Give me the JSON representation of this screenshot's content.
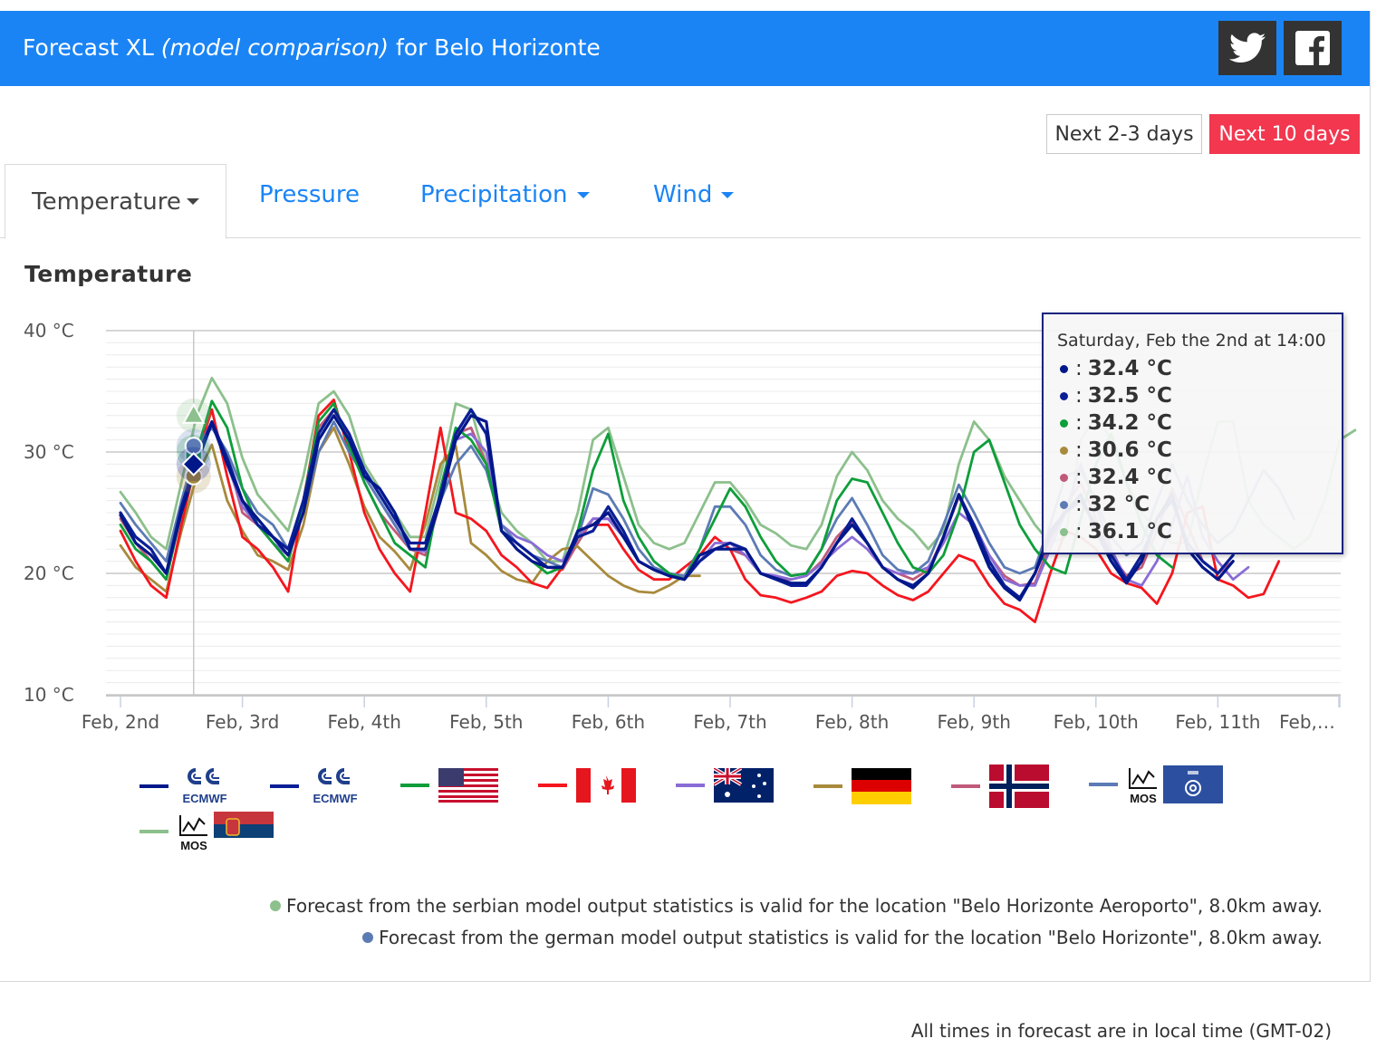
{
  "header": {
    "title_prefix": "Forecast XL",
    "title_italic": "(model comparison)",
    "title_suffix": "for Belo Horizonte",
    "share_twitter_icon": "twitter-icon",
    "share_facebook_icon": "facebook-icon"
  },
  "range_buttons": {
    "short_label": "Next 2-3 days",
    "long_label": "Next 10 days"
  },
  "tabs": [
    {
      "label": "Temperature",
      "active": true,
      "has_dropdown": true
    },
    {
      "label": "Pressure",
      "active": false,
      "has_dropdown": false
    },
    {
      "label": "Precipitation",
      "active": false,
      "has_dropdown": true
    },
    {
      "label": "Wind",
      "active": false,
      "has_dropdown": true
    }
  ],
  "section_title": "Temperature",
  "tooltip": {
    "header": "Saturday, Feb the 2nd at 14:00",
    "rows": [
      {
        "value": "32.4 °C",
        "color": "#00178a"
      },
      {
        "value": "32.5 °C",
        "color": "#0a1e96"
      },
      {
        "value": "34.2 °C",
        "color": "#0e9e3a"
      },
      {
        "value": "30.6 °C",
        "color": "#a88a3c"
      },
      {
        "value": "32.4 °C",
        "color": "#c05a7a"
      },
      {
        "value": "32 °C",
        "color": "#5c7bb5"
      },
      {
        "value": "36.1 °C",
        "color": "#8cc08c"
      }
    ]
  },
  "legend": [
    {
      "color": "#00178a",
      "icon": "ecmwf-logo-icon",
      "text": "ECMWF"
    },
    {
      "color": "#0a1e96",
      "icon": "ecmwf-logo-icon",
      "text": "ECMWF"
    },
    {
      "color": "#0e9e3a",
      "icon": "usa-flag-icon"
    },
    {
      "color": "#f5161e",
      "icon": "canada-flag-icon"
    },
    {
      "color": "#8a6cd6",
      "icon": "australia-flag-icon"
    },
    {
      "color": "#a88a3c",
      "icon": "germany-flag-icon"
    },
    {
      "color": "#c05a7a",
      "icon": "norway-flag-icon"
    },
    {
      "color": "#5c7bb5",
      "icon": "mos-dwd-icon",
      "text": "MOS"
    },
    {
      "color": "#8cc08c",
      "icon": "mos-serbia-flag-icon",
      "text": "MOS"
    }
  ],
  "notes": [
    {
      "text": "Forecast from the serbian model output statistics is valid for the location \"Belo Horizonte Aeroporto\", 8.0km away.",
      "color": "#8cc08c"
    },
    {
      "text": "Forecast from the german model output statistics is valid for the location \"Belo Horizonte\", 8.0km away.",
      "color": "#5c7bb5"
    }
  ],
  "footer": "All times in forecast are in local time (GMT-02)",
  "chart_data": {
    "type": "line",
    "title": "Temperature",
    "ylim": [
      10,
      40
    ],
    "y_ticks": [
      "10 °C",
      "20 °C",
      "30 °C",
      "40 °C"
    ],
    "x_ticks": [
      "Feb, 2nd",
      "Feb, 3rd",
      "Feb, 4th",
      "Feb, 5th",
      "Feb, 6th",
      "Feb, 7th",
      "Feb, 8th",
      "Feb, 9th",
      "Feb, 10th",
      "Feb, 11th",
      "Feb,…"
    ],
    "x_unit": "days since start (3h steps)",
    "hover_x": 0.6,
    "series": [
      {
        "color": "#00178a",
        "x0": 0,
        "step": 0.125,
        "values": [
          24.8,
          22.5,
          21.5,
          20,
          25,
          29,
          32.4,
          29,
          26,
          24.5,
          23,
          21.5,
          25,
          31,
          33,
          31,
          28,
          27,
          25,
          22,
          22,
          26,
          31,
          33,
          32.5,
          23.5,
          22,
          21,
          20.5,
          20.5,
          23.5,
          24,
          25,
          23,
          21,
          20.3,
          19.8,
          19.5,
          21.5,
          22,
          22,
          22,
          20,
          19.6,
          19.2,
          19.2,
          20.5,
          22.5,
          24,
          22.5,
          20.5,
          19.5,
          18.8,
          20,
          23,
          26.5,
          23.5,
          20.5,
          18.8,
          17.8,
          20,
          23.5,
          25,
          26.5,
          23.5,
          21,
          19.2,
          21,
          24.5,
          26.5,
          22,
          20.5,
          19.5,
          21
        ]
      },
      {
        "color": "#0a1e96",
        "x0": 0,
        "step": 0.125,
        "values": [
          25,
          23,
          22,
          20,
          25.5,
          29.5,
          32.5,
          29.5,
          26,
          24,
          23,
          22,
          26,
          31.5,
          33.5,
          31.5,
          28.5,
          26.5,
          24.5,
          22.5,
          22.5,
          26.5,
          31.5,
          33.5,
          31.5,
          23.5,
          22.5,
          21.5,
          20.5,
          20.5,
          23,
          23.5,
          25.5,
          23.5,
          21,
          20.3,
          19.8,
          19.5,
          21,
          22,
          22.5,
          22,
          20,
          19.5,
          19,
          19,
          20.5,
          22.5,
          24.5,
          22.5,
          20.5,
          19.5,
          19,
          20,
          23,
          26.5,
          24,
          21,
          19,
          18,
          20,
          23,
          25,
          26,
          24,
          21.5,
          19.5,
          21.5,
          24.5,
          26,
          22.5,
          21,
          20,
          21.5
        ]
      },
      {
        "color": "#0e9e3a",
        "x0": 0,
        "step": 0.125,
        "values": [
          24,
          22,
          21,
          19.5,
          25,
          30,
          34.2,
          32,
          27,
          24,
          22.5,
          21,
          26,
          32.5,
          34,
          30.5,
          27.5,
          25,
          22.5,
          21.5,
          20.5,
          27,
          32,
          31,
          29,
          23.5,
          22,
          21,
          20,
          20.5,
          23.5,
          28.5,
          31.5,
          26,
          23,
          21,
          20,
          19.5,
          22,
          24.5,
          27,
          25.5,
          23,
          21,
          19.8,
          20,
          22,
          26,
          27.8,
          27.5,
          25,
          22.5,
          20.5,
          20,
          21.5,
          25,
          30,
          31,
          27.5,
          24,
          22,
          20.5,
          20,
          24.5,
          29,
          31.5,
          27.5,
          24,
          21.5,
          20.5
        ]
      },
      {
        "color": "#f5161e",
        "x0": 0,
        "step": 0.125,
        "values": [
          23.5,
          21,
          19,
          18,
          24,
          29.5,
          33.5,
          28,
          23,
          22,
          20.5,
          18.5,
          26,
          33,
          34.3,
          30,
          25,
          22,
          20,
          18.5,
          25,
          32,
          25,
          24.5,
          23.5,
          21.5,
          20.5,
          19.2,
          18.8,
          20.5,
          23.5,
          24,
          24,
          22,
          20.3,
          19.5,
          19.5,
          20.5,
          21.5,
          23,
          22,
          19.5,
          18.2,
          18,
          17.6,
          18,
          18.5,
          19.8,
          20.2,
          20,
          19,
          18.2,
          17.8,
          18.5,
          20,
          21.5,
          21,
          19,
          17.5,
          17,
          16,
          20,
          23.5,
          23,
          22,
          20,
          19.2,
          18.8,
          17.5,
          20,
          25,
          25.5,
          19.5,
          19,
          18,
          18.3,
          21
        ]
      },
      {
        "color": "#8a6cd6",
        "x0": 0,
        "step": 0.125,
        "values": [
          25,
          22.5,
          21.5,
          20,
          25,
          30,
          32.5,
          29,
          25.5,
          24,
          22.5,
          21.5,
          25.5,
          31,
          33,
          31,
          28,
          26,
          24,
          22,
          21.8,
          26,
          31,
          31.5,
          30,
          24,
          23,
          22.5,
          21.5,
          21,
          23,
          24.5,
          24.5,
          23,
          21,
          20.3,
          20,
          19.5,
          21,
          22.5,
          22.5,
          21.5,
          20,
          19.8,
          19.5,
          19.8,
          20.8,
          22,
          23,
          22,
          20.5,
          20,
          20,
          20.5,
          22.5,
          25,
          24,
          21.5,
          19.5,
          19,
          19,
          22,
          25,
          29,
          25.5,
          22,
          19.5,
          19,
          21,
          24,
          28,
          23,
          21,
          19.5,
          20.5
        ]
      },
      {
        "color": "#a88a3c",
        "x0": 0,
        "step": 0.125,
        "values": [
          22.3,
          20.5,
          19.5,
          18.5,
          23.5,
          28,
          30.6,
          26,
          23.5,
          21.5,
          21,
          20.3,
          24,
          30,
          32,
          29,
          25.5,
          23,
          21.8,
          20.3,
          24,
          29,
          30.5,
          22.5,
          21.5,
          20.2,
          19.5,
          19.2,
          21,
          22,
          22.2,
          21,
          19.8,
          19,
          18.5,
          18.4,
          19,
          19.8,
          19.8
        ]
      },
      {
        "color": "#c05a7a",
        "x0": 0,
        "step": 0.125,
        "values": [
          24.5,
          22.5,
          21,
          19.5,
          25,
          30,
          32.4,
          29.5,
          25,
          24,
          22.5,
          21,
          25.5,
          32,
          33.5,
          31,
          27.5,
          25,
          23.5,
          22,
          21.5,
          26,
          31.5,
          32,
          29,
          23.5,
          22.5,
          21.5,
          20.5,
          20.3,
          22.5,
          24.5,
          24.5,
          23,
          21,
          20.3,
          20,
          19.6,
          21,
          22,
          22,
          21.5,
          20,
          19.6,
          19.5,
          19.8,
          21,
          23,
          24.3,
          22.5,
          20.5,
          20,
          19.5,
          20.3,
          23,
          26.3,
          24,
          21.5,
          19.8,
          19,
          19.2,
          22.5,
          25.5,
          27.5,
          24.5,
          21.5,
          19.8,
          20.5,
          23.5,
          27,
          24,
          21,
          20,
          21
        ]
      },
      {
        "color": "#5c7bb5",
        "x0": 0,
        "step": 0.125,
        "values": [
          25.8,
          24,
          22.5,
          21,
          26,
          30.5,
          32,
          30,
          27,
          25,
          24,
          22,
          25,
          30,
          32.5,
          30,
          28,
          26,
          24,
          22,
          22,
          26,
          29,
          30.5,
          28.5,
          24,
          22.5,
          21.5,
          21,
          20.5,
          23,
          27,
          26.5,
          24.5,
          22,
          20.5,
          20,
          19.8,
          22,
          25.5,
          25.5,
          24,
          21.5,
          20.3,
          19.8,
          20,
          22,
          24.5,
          26.2,
          24,
          21.5,
          20.3,
          20,
          21,
          24,
          27.3,
          25,
          22.5,
          20.5,
          20,
          20.5,
          24,
          28,
          28.5,
          26,
          23,
          21.5,
          22.5,
          26,
          29,
          26,
          24,
          22.5,
          23.5,
          26,
          28.5,
          27,
          24.5
        ]
      },
      {
        "color": "#8cc08c",
        "x0": 0,
        "step": 0.125,
        "values": [
          26.7,
          25,
          23,
          22,
          27.5,
          33,
          36.1,
          34,
          29.5,
          26.5,
          25,
          23.5,
          28,
          34,
          35,
          33,
          29,
          27,
          25,
          23,
          23,
          28,
          34,
          33.5,
          29,
          25,
          23.5,
          22.5,
          21,
          21,
          25,
          31,
          32,
          28,
          24,
          22.5,
          22,
          22.5,
          25,
          27.5,
          27.5,
          26,
          24,
          23.3,
          22.3,
          22,
          24,
          28,
          30,
          28.5,
          26,
          24.5,
          23.5,
          22,
          23.5,
          29,
          32.5,
          31,
          28,
          26,
          24,
          22.5,
          23,
          31,
          33,
          31,
          27.5,
          25,
          23.5,
          22.5,
          22.5,
          28,
          32.5,
          32.5,
          26,
          24,
          23,
          22,
          23,
          26,
          31,
          31.8
        ]
      }
    ]
  }
}
